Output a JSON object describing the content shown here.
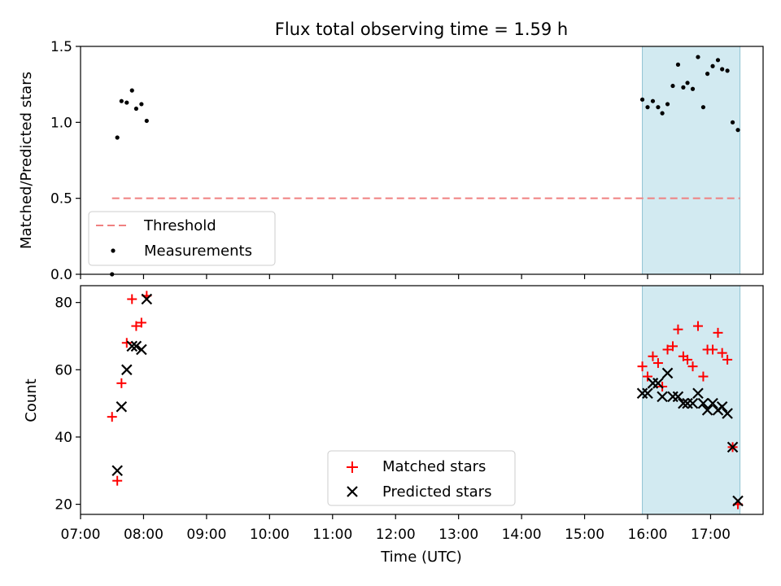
{
  "title": "Flux total observing time = 1.59 h",
  "colors": {
    "threshold": "#f08080",
    "measurement": "#000000",
    "matched": "#ff0000",
    "predicted": "#000000",
    "highlight": "#add8e6"
  },
  "chart_data": [
    {
      "type": "scatter",
      "ylabel": "Matched/Predicted stars",
      "xlabel": "",
      "ylim": [
        0,
        1.5
      ],
      "yticks": [
        "0.0",
        "0.5",
        "1.0",
        "1.5"
      ],
      "xlim": [
        "07:00",
        "17:50"
      ],
      "highlight_span": [
        "15:55",
        "17:28"
      ],
      "legend_position": "lower-left",
      "threshold": {
        "name": "Threshold",
        "y": 0.5,
        "x_start": "07:30",
        "x_end": "17:28",
        "style": "dashed"
      },
      "series": [
        {
          "name": "Measurements",
          "marker": "dot",
          "x": [
            "07:30",
            "07:35",
            "07:39",
            "07:44",
            "07:49",
            "07:53",
            "07:58",
            "08:03",
            "15:55",
            "16:00",
            "16:05",
            "16:10",
            "16:14",
            "16:19",
            "16:24",
            "16:29",
            "16:34",
            "16:38",
            "16:43",
            "16:48",
            "16:53",
            "16:57",
            "17:02",
            "17:07",
            "17:11",
            "17:16",
            "17:21",
            "17:26"
          ],
          "y": [
            0.0,
            0.9,
            1.14,
            1.13,
            1.21,
            1.09,
            1.12,
            1.01,
            1.15,
            1.1,
            1.14,
            1.1,
            1.06,
            1.12,
            1.24,
            1.38,
            1.23,
            1.26,
            1.22,
            1.43,
            1.1,
            1.32,
            1.37,
            1.41,
            1.35,
            1.34,
            1.0,
            0.95
          ]
        }
      ]
    },
    {
      "type": "scatter",
      "ylabel": "Count",
      "xlabel": "Time (UTC)",
      "ylim": [
        17,
        85
      ],
      "yticks": [
        "20",
        "40",
        "60",
        "80"
      ],
      "xlim": [
        "07:00",
        "17:50"
      ],
      "xticks": [
        "07:00",
        "08:00",
        "09:00",
        "10:00",
        "11:00",
        "12:00",
        "13:00",
        "14:00",
        "15:00",
        "16:00",
        "17:00"
      ],
      "highlight_span": [
        "15:55",
        "17:28"
      ],
      "legend_position": "lower-center",
      "series": [
        {
          "name": "Matched stars",
          "marker": "plus",
          "x": [
            "07:30",
            "07:35",
            "07:39",
            "07:44",
            "07:49",
            "07:53",
            "07:58",
            "08:03",
            "15:55",
            "16:00",
            "16:05",
            "16:10",
            "16:14",
            "16:19",
            "16:24",
            "16:29",
            "16:34",
            "16:38",
            "16:43",
            "16:48",
            "16:53",
            "16:57",
            "17:02",
            "17:07",
            "17:11",
            "17:16",
            "17:21",
            "17:26"
          ],
          "y": [
            46,
            27,
            56,
            68,
            81,
            73,
            74,
            82,
            61,
            58,
            64,
            62,
            55,
            66,
            67,
            72,
            64,
            63,
            61,
            73,
            58,
            66,
            66,
            71,
            65,
            63,
            37,
            20
          ]
        },
        {
          "name": "Predicted stars",
          "marker": "x",
          "x": [
            "07:35",
            "07:39",
            "07:44",
            "07:49",
            "07:53",
            "07:58",
            "08:03",
            "15:55",
            "16:00",
            "16:05",
            "16:10",
            "16:14",
            "16:19",
            "16:24",
            "16:29",
            "16:34",
            "16:38",
            "16:43",
            "16:48",
            "16:53",
            "16:57",
            "17:02",
            "17:07",
            "17:11",
            "17:16",
            "17:21",
            "17:26"
          ],
          "y": [
            30,
            49,
            60,
            67,
            67,
            66,
            81,
            53,
            53,
            56,
            56,
            52,
            59,
            52,
            52,
            50,
            50,
            50,
            53,
            50,
            48,
            50,
            48,
            49,
            47,
            37,
            21
          ]
        }
      ]
    }
  ]
}
